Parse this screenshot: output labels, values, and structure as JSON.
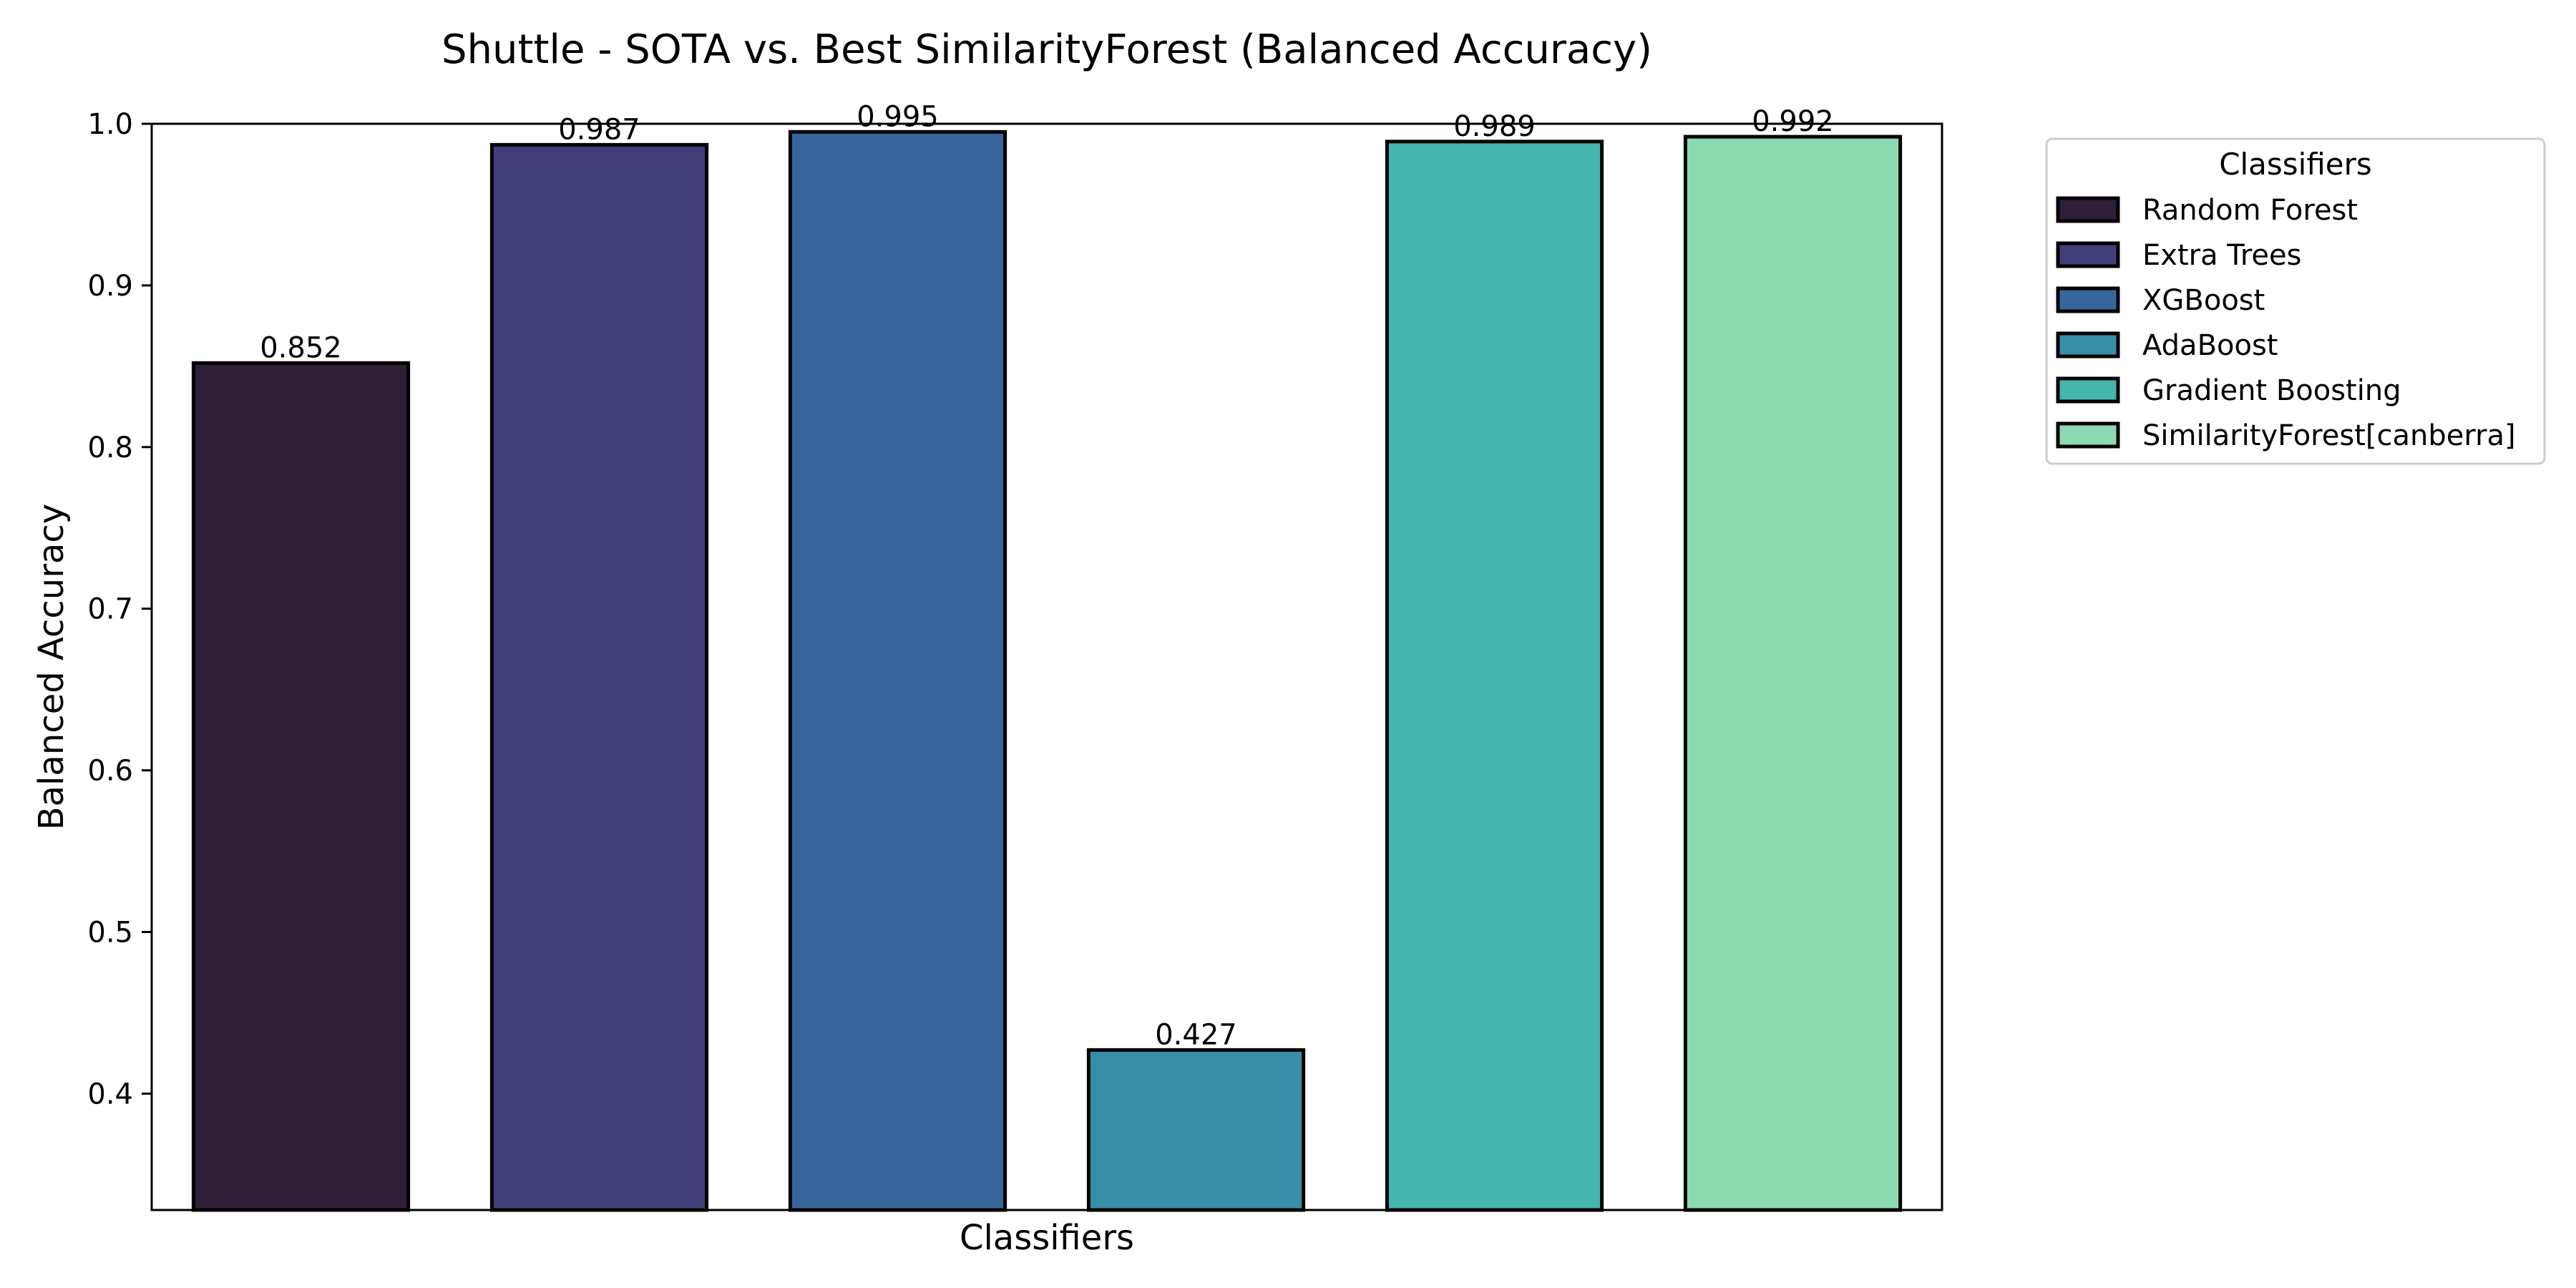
{
  "chart_data": {
    "type": "bar",
    "title": "Shuttle - SOTA vs. Best SimilarityForest (Balanced Accuracy)",
    "xlabel": "Classifiers",
    "ylabel": "Balanced Accuracy",
    "ylim": [
      0.328,
      1.0
    ],
    "yticks": [
      "0.4",
      "0.5",
      "0.6",
      "0.7",
      "0.8",
      "0.9",
      "1.0"
    ],
    "grid": false,
    "legend": {
      "title": "Classifiers",
      "placement": "outside-right-top"
    },
    "series": [
      {
        "name": "Random Forest",
        "value": 0.852,
        "label": "0.852",
        "color": "#2e1e37"
      },
      {
        "name": "Extra Trees",
        "value": 0.987,
        "label": "0.987",
        "color": "#413e79"
      },
      {
        "name": "XGBoost",
        "value": 0.995,
        "label": "0.995",
        "color": "#37669c"
      },
      {
        "name": "AdaBoost",
        "value": 0.427,
        "label": "0.427",
        "color": "#368fa7"
      },
      {
        "name": "Gradient Boosting",
        "value": 0.989,
        "label": "0.989",
        "color": "#44b6ad"
      },
      {
        "name": "SimilarityForest[canberra]",
        "value": 0.992,
        "label": "0.992",
        "color": "#8cdab1"
      }
    ]
  }
}
